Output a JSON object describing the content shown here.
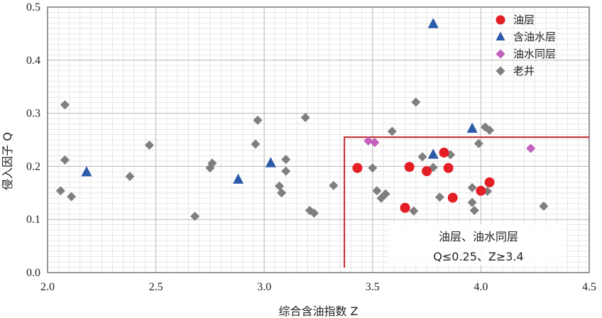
{
  "chart_data": {
    "type": "scatter",
    "xlabel": "综合含油指数 Z",
    "ylabel": "侵入因子 Q",
    "xlim": [
      2.0,
      4.5
    ],
    "ylim": [
      0.0,
      0.5
    ],
    "xticks": [
      "2.0",
      "2.5",
      "3.0",
      "3.5",
      "4.0",
      "4.5"
    ],
    "yticks": [
      "0.0",
      "0.1",
      "0.2",
      "0.3",
      "0.4",
      "0.5"
    ],
    "grid": true,
    "legend_position": "top-right",
    "series": [
      {
        "name": "油层",
        "marker": "circle",
        "color": "#e31e24",
        "points": [
          [
            3.43,
            0.197
          ],
          [
            3.67,
            0.199
          ],
          [
            3.75,
            0.191
          ],
          [
            3.83,
            0.226
          ],
          [
            3.85,
            0.197
          ],
          [
            3.65,
            0.122
          ],
          [
            3.87,
            0.141
          ],
          [
            4.0,
            0.154
          ],
          [
            4.04,
            0.17
          ]
        ]
      },
      {
        "name": "含油水层",
        "marker": "triangle",
        "color": "#2b5aa8",
        "points": [
          [
            2.18,
            0.189
          ],
          [
            2.88,
            0.175
          ],
          [
            3.03,
            0.206
          ],
          [
            3.78,
            0.468
          ],
          [
            3.78,
            0.222
          ],
          [
            3.96,
            0.271
          ]
        ]
      },
      {
        "name": "油水同层",
        "marker": "diamond",
        "color": "#c45fbd",
        "points": [
          [
            3.48,
            0.248
          ],
          [
            3.51,
            0.245
          ],
          [
            4.23,
            0.234
          ]
        ]
      },
      {
        "name": "老井",
        "marker": "diamond",
        "color": "#7f7f7f",
        "points": [
          [
            2.06,
            0.154
          ],
          [
            2.08,
            0.316
          ],
          [
            2.08,
            0.212
          ],
          [
            2.11,
            0.143
          ],
          [
            2.38,
            0.181
          ],
          [
            2.47,
            0.24
          ],
          [
            2.68,
            0.106
          ],
          [
            2.75,
            0.197
          ],
          [
            2.76,
            0.206
          ],
          [
            2.96,
            0.242
          ],
          [
            2.97,
            0.287
          ],
          [
            3.07,
            0.163
          ],
          [
            3.08,
            0.15
          ],
          [
            3.1,
            0.191
          ],
          [
            3.1,
            0.213
          ],
          [
            3.19,
            0.292
          ],
          [
            3.21,
            0.117
          ],
          [
            3.23,
            0.112
          ],
          [
            3.32,
            0.164
          ],
          [
            3.5,
            0.197
          ],
          [
            3.52,
            0.154
          ],
          [
            3.54,
            0.14
          ],
          [
            3.56,
            0.148
          ],
          [
            3.59,
            0.266
          ],
          [
            3.69,
            0.116
          ],
          [
            3.7,
            0.321
          ],
          [
            3.73,
            0.218
          ],
          [
            3.78,
            0.198
          ],
          [
            3.81,
            0.142
          ],
          [
            3.86,
            0.222
          ],
          [
            3.96,
            0.16
          ],
          [
            3.96,
            0.132
          ],
          [
            3.97,
            0.117
          ],
          [
            3.99,
            0.243
          ],
          [
            4.02,
            0.274
          ],
          [
            4.04,
            0.268
          ],
          [
            4.03,
            0.153
          ],
          [
            4.29,
            0.125
          ]
        ]
      }
    ],
    "highlight_box": {
      "x_min": 3.37,
      "y_max": 0.255,
      "color": "#c0262d"
    },
    "annotation": {
      "lines": [
        "油层、油水同层",
        "Q≤0.25、Z≥3.4"
      ]
    }
  }
}
